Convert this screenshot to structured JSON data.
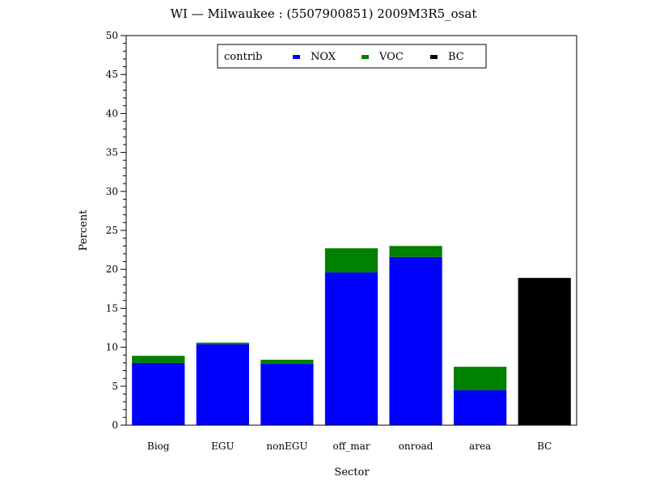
{
  "chart_data": {
    "type": "bar",
    "stacked": true,
    "title": "WI  —  Milwaukee  :  (5507900851)  2009M3R5_osat",
    "xlabel": "Sector",
    "ylabel": "Percent",
    "ylim": [
      0,
      50
    ],
    "y_ticks": [
      "0",
      "5",
      "10",
      "15",
      "20",
      "25",
      "30",
      "35",
      "40",
      "45",
      "50"
    ],
    "categories": [
      "Biog",
      "EGU",
      "nonEGU",
      "off_mar",
      "onroad",
      "area",
      "BC"
    ],
    "legend": {
      "title": "contrib",
      "placement": "top-center"
    },
    "series": [
      {
        "name": "NOX",
        "color": "#0000ff",
        "values": [
          8.0,
          10.4,
          7.9,
          19.6,
          21.6,
          4.5,
          0
        ]
      },
      {
        "name": "VOC",
        "color": "#008000",
        "values": [
          0.9,
          0.2,
          0.5,
          3.1,
          1.4,
          3.0,
          0
        ]
      },
      {
        "name": "BC",
        "color": "#000000",
        "values": [
          0,
          0,
          0,
          0,
          0,
          0,
          18.9
        ]
      }
    ],
    "grid": false
  }
}
